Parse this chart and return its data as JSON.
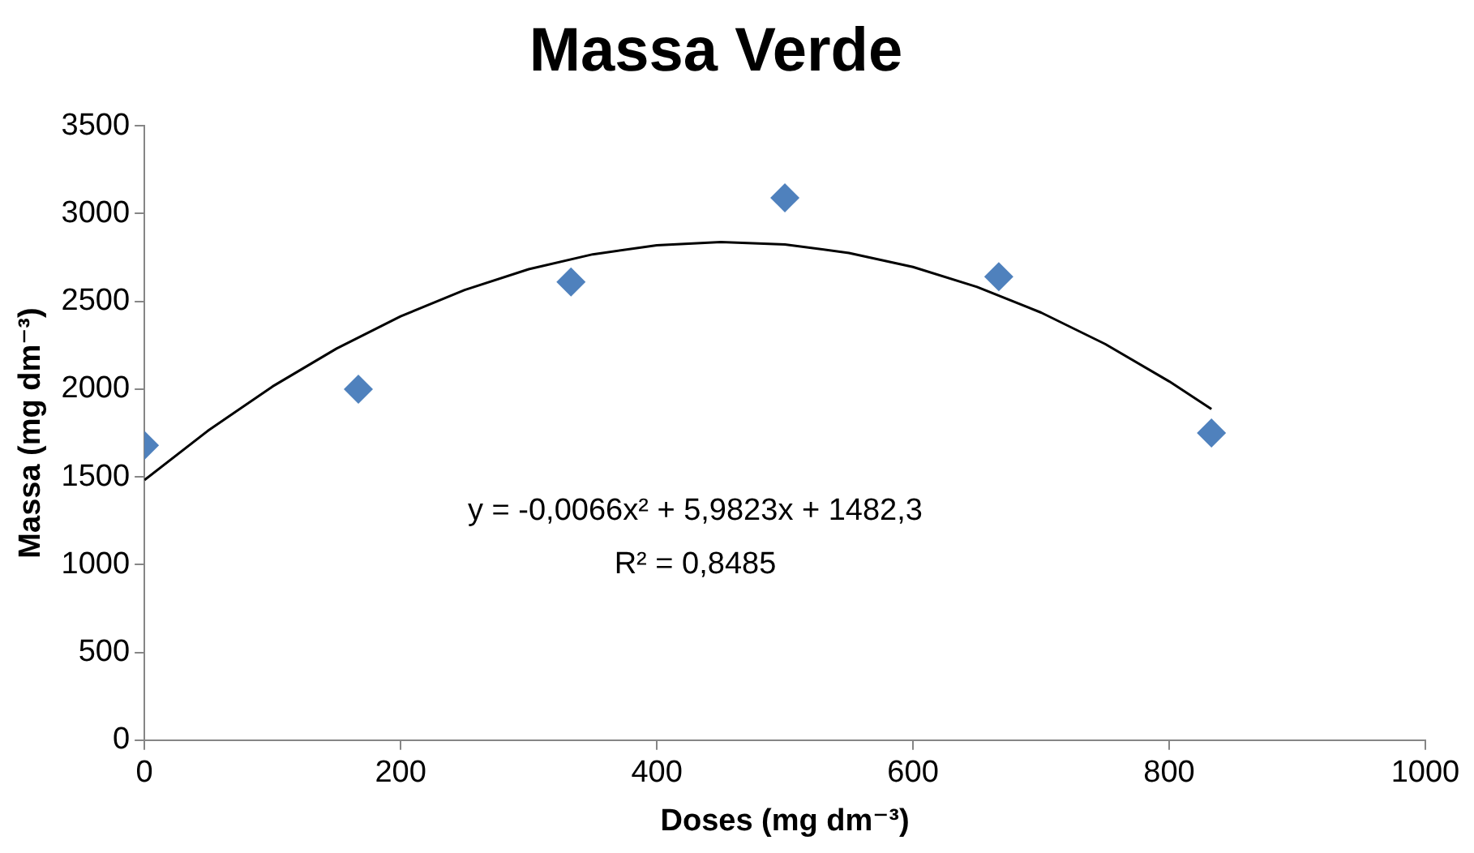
{
  "chart_data": {
    "type": "scatter",
    "title": "Massa Verde",
    "xlabel": "Doses (mg dm⁻³)",
    "ylabel": "Massa (mg dm⁻³)",
    "x": [
      0,
      167,
      333,
      500,
      667,
      833
    ],
    "marker": "diamond",
    "series": [
      {
        "color": "#4f81bd",
        "values": [
          1680,
          2000,
          2610,
          3090,
          2640,
          1750
        ]
      },
      {
        "type": "line",
        "color": "#000000",
        "marker": "none",
        "x": [
          0,
          50,
          100,
          150,
          200,
          250,
          300,
          350,
          400,
          450,
          500,
          550,
          600,
          650,
          700,
          750,
          800,
          833
        ],
        "values": [
          1482,
          1765,
          2015,
          2231,
          2415,
          2565,
          2683,
          2768,
          2819,
          2838,
          2824,
          2776,
          2696,
          2582,
          2436,
          2257,
          2044,
          1886
        ]
      }
    ],
    "xlim": [
      0,
      1000
    ],
    "xticks": [
      0,
      200,
      400,
      600,
      800,
      1000
    ],
    "ylim": [
      0,
      3500
    ],
    "yticks": [
      0,
      500,
      1000,
      1500,
      2000,
      2500,
      3000,
      3500
    ],
    "grid": false,
    "legend": false,
    "annotations": [
      "y = -0,0066x² + 5,9823x + 1482,3",
      "R² = 0,8485"
    ]
  }
}
